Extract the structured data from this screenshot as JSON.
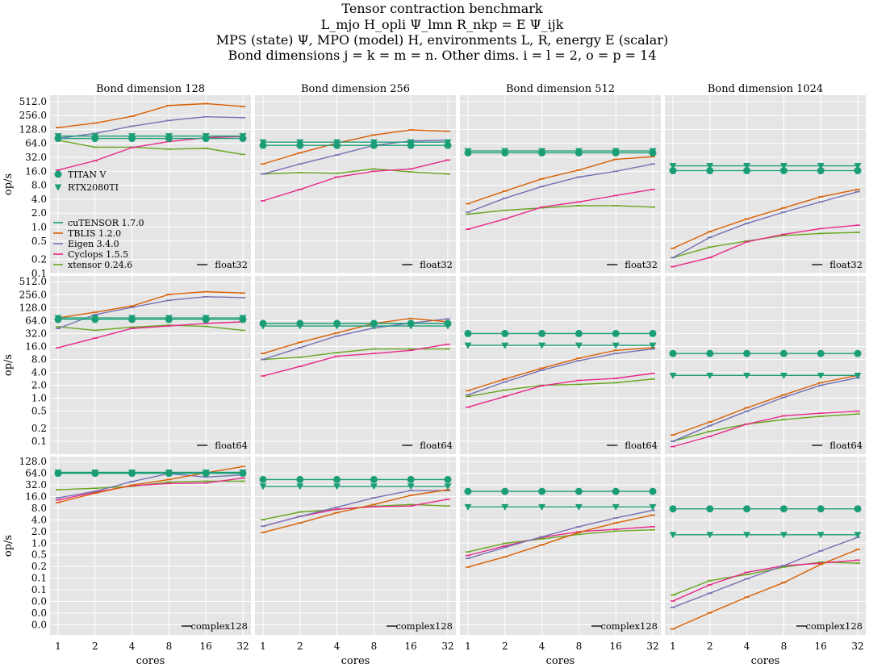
{
  "title_lines": [
    "Tensor contraction benchmark",
    "L_mjo H_opli Ψ_lmn R_nkp = E Ψ_ijk",
    "MPS (state) Ψ, MPO (model) H, environments L, R, energy E (scalar)",
    "Bond dimensions j = k = m = n. Other dims. i = l = 2, o = p = 14"
  ],
  "column_titles": [
    "Bond dimension 128",
    "Bond dimension 256",
    "Bond dimension 512",
    "Bond dimension 1024"
  ],
  "row_dtypes": [
    "float32",
    "float64",
    "complex128"
  ],
  "xlabel": "cores",
  "ylabel": "op/s",
  "x_tick_labels": [
    "1",
    "2",
    "4",
    "8",
    "16",
    "32"
  ],
  "y_tick_labels_top": [
    "0.1",
    "0.2",
    "0.5",
    "1.0",
    "2.0",
    "4.0",
    "8.0",
    "16.0",
    "32.0",
    "64.0",
    "128.0",
    "256.0",
    "512.0"
  ],
  "y_tick_labels_bottom": [
    "0.0",
    "0.0",
    "0.0",
    "0.1",
    "0.1",
    "0.2",
    "0.5",
    "1.0",
    "2.0",
    "4.0",
    "8.0",
    "16.0",
    "32.0",
    "64.0",
    "128.0"
  ],
  "legend": {
    "gpu": [
      {
        "label": "TITAN V",
        "marker": "circle"
      },
      {
        "label": "RTX2080TI",
        "marker": "triangle-down"
      }
    ],
    "cpu": [
      "cuTENSOR 1.7.0",
      "TBLIS 1.2.0",
      "Eigen 3.4.0",
      "Cyclops 1.5.5",
      "xtensor 0.24.6"
    ]
  },
  "colors": {
    "cutensor": "#1b9e77",
    "tblis": "#d95f02",
    "eigen": "#7570b3",
    "cyclops": "#e7298a",
    "xtensor": "#66a61e",
    "panel_bg": "#e5e5e5",
    "grid": "#ffffff"
  },
  "chart_data": {
    "type": "line",
    "x": [
      1,
      2,
      4,
      8,
      16,
      32
    ],
    "xscale": "log2",
    "yscale": "log",
    "grid": true,
    "legend_placement": "left, top-left panel",
    "ylim_rows": [
      [
        0.1,
        700
      ],
      [
        0.05,
        700
      ],
      [
        0.001,
        180
      ]
    ],
    "panels": [
      {
        "row": 0,
        "col": 0,
        "series": {
          "titan": [
            82,
            82,
            82,
            82,
            82,
            82
          ],
          "rtx": [
            92,
            92,
            92,
            92,
            92,
            92
          ],
          "tblis": [
            140,
            175,
            245,
            420,
            460,
            400
          ],
          "eigen": [
            82,
            105,
            150,
            200,
            240,
            230
          ],
          "cyclops": [
            17,
            27,
            52,
            70,
            85,
            90
          ],
          "xtensor": [
            75,
            53,
            53,
            48,
            50,
            37
          ]
        }
      },
      {
        "row": 0,
        "col": 1,
        "series": {
          "titan": [
            58,
            58,
            58,
            58,
            58,
            58
          ],
          "rtx": [
            68,
            68,
            68,
            68,
            68,
            68
          ],
          "tblis": [
            23,
            40,
            65,
            97,
            125,
            117
          ],
          "eigen": [
            14,
            23,
            36,
            58,
            72,
            75
          ],
          "cyclops": [
            3.7,
            6.5,
            12,
            16,
            18,
            28
          ],
          "xtensor": [
            14,
            15,
            14.5,
            18,
            15.5,
            14
          ]
        }
      },
      {
        "row": 0,
        "col": 2,
        "series": {
          "titan": [
            40,
            40,
            40,
            40,
            40,
            40
          ],
          "rtx": [
            44,
            44,
            44,
            44,
            44,
            44
          ],
          "tblis": [
            3.2,
            6,
            11,
            17,
            29,
            33
          ],
          "eigen": [
            2.1,
            4.2,
            7.5,
            12,
            16,
            23
          ],
          "cyclops": [
            0.9,
            1.5,
            2.7,
            3.5,
            4.8,
            6.5
          ],
          "xtensor": [
            1.9,
            2.3,
            2.6,
            2.9,
            2.9,
            2.7
          ]
        }
      },
      {
        "row": 0,
        "col": 3,
        "series": {
          "titan": [
            16.5,
            16.5,
            16.5,
            16.5,
            16.5,
            16.5
          ],
          "rtx": [
            21,
            21,
            21,
            21,
            21,
            21
          ],
          "tblis": [
            0.35,
            0.8,
            1.5,
            2.6,
            4.5,
            6.5
          ],
          "eigen": [
            0.22,
            0.6,
            1.2,
            2.1,
            3.5,
            5.8
          ],
          "cyclops": [
            0.14,
            0.22,
            0.48,
            0.7,
            0.93,
            1.1
          ],
          "xtensor": [
            0.22,
            0.37,
            0.5,
            0.66,
            0.73,
            0.77
          ]
        }
      },
      {
        "row": 1,
        "col": 0,
        "series": {
          "titan": [
            68,
            68,
            68,
            68,
            68,
            68
          ],
          "rtx": [
            74,
            74,
            74,
            74,
            74,
            74
          ],
          "tblis": [
            74,
            100,
            140,
            260,
            300,
            280
          ],
          "eigen": [
            42,
            88,
            130,
            190,
            230,
            220
          ],
          "cyclops": [
            15,
            25,
            42,
            48,
            55,
            60
          ],
          "xtensor": [
            46,
            38,
            45,
            50,
            47,
            38
          ]
        }
      },
      {
        "row": 1,
        "col": 1,
        "series": {
          "titan": [
            55,
            55,
            55,
            55,
            55,
            55
          ],
          "rtx": [
            48,
            48,
            48,
            48,
            48,
            48
          ],
          "tblis": [
            11,
            20,
            33,
            55,
            72,
            60
          ],
          "eigen": [
            8,
            15,
            28,
            43,
            56,
            70
          ],
          "cyclops": [
            3.3,
            5.5,
            9.5,
            11,
            13,
            18
          ],
          "xtensor": [
            8,
            9,
            11.5,
            14,
            14,
            14
          ]
        }
      },
      {
        "row": 1,
        "col": 2,
        "series": {
          "titan": [
            32,
            32,
            32,
            32,
            32,
            32
          ],
          "rtx": [
            17,
            17,
            17,
            17,
            17,
            17
          ],
          "tblis": [
            1.5,
            2.8,
            5,
            8.5,
            13,
            15
          ],
          "eigen": [
            1.2,
            2.4,
            4.5,
            7.5,
            11,
            14
          ],
          "cyclops": [
            0.62,
            1.1,
            1.95,
            2.6,
            2.9,
            3.8
          ],
          "xtensor": [
            1.1,
            1.55,
            2,
            2.1,
            2.3,
            2.8
          ]
        }
      },
      {
        "row": 1,
        "col": 3,
        "series": {
          "titan": [
            11,
            11,
            11,
            11,
            11,
            11
          ],
          "rtx": [
            3.4,
            3.4,
            3.4,
            3.4,
            3.4,
            3.4
          ],
          "tblis": [
            0.14,
            0.28,
            0.6,
            1.2,
            2.3,
            3.4
          ],
          "eigen": [
            0.1,
            0.23,
            0.5,
            1.05,
            2,
            3
          ],
          "cyclops": [
            0.075,
            0.13,
            0.25,
            0.39,
            0.45,
            0.5
          ],
          "xtensor": [
            0.1,
            0.17,
            0.25,
            0.32,
            0.38,
            0.43
          ]
        }
      },
      {
        "row": 2,
        "col": 0,
        "series": {
          "titan": [
            58,
            58,
            58,
            58,
            58,
            58
          ],
          "rtx": [
            62,
            62,
            62,
            62,
            62,
            62
          ],
          "tblis": [
            8,
            15,
            26,
            38,
            60,
            92
          ],
          "eigen": [
            11,
            17,
            33,
            57,
            45,
            52
          ],
          "cyclops": [
            9.5,
            16,
            25,
            29,
            30,
            42
          ],
          "xtensor": [
            19,
            21,
            24,
            32,
            34,
            34
          ]
        }
      },
      {
        "row": 2,
        "col": 1,
        "series": {
          "titan": [
            38,
            38,
            38,
            38,
            38,
            38
          ],
          "rtx": [
            24,
            24,
            24,
            24,
            24,
            24
          ],
          "tblis": [
            1.05,
            2,
            4,
            7,
            13,
            19
          ],
          "eigen": [
            1.6,
            3.1,
            5.8,
            11,
            18,
            18
          ],
          "cyclops": [
            1.6,
            3.1,
            5.1,
            6,
            6.3,
            10
          ],
          "xtensor": [
            2.5,
            4.2,
            5,
            6.2,
            7,
            6.3
          ]
        }
      },
      {
        "row": 2,
        "col": 2,
        "series": {
          "titan": [
            17,
            17,
            17,
            17,
            17,
            17
          ],
          "rtx": [
            5.9,
            5.9,
            5.9,
            5.9,
            5.9,
            5.9
          ],
          "tblis": [
            0.1,
            0.2,
            0.45,
            1.05,
            2,
            3.4
          ],
          "eigen": [
            0.18,
            0.38,
            0.78,
            1.55,
            2.8,
            4.7
          ],
          "cyclops": [
            0.22,
            0.42,
            0.75,
            1.1,
            1.3,
            1.55
          ],
          "xtensor": [
            0.28,
            0.5,
            0.68,
            0.92,
            1.15,
            1.25
          ]
        }
      },
      {
        "row": 2,
        "col": 3,
        "series": {
          "titan": [
            5.2,
            5.2,
            5.2,
            5.2,
            5.2,
            5.2
          ],
          "rtx": [
            0.9,
            0.9,
            0.9,
            0.9,
            0.9,
            0.9
          ],
          "tblis": [
            0.0015,
            0.0045,
            0.013,
            0.035,
            0.12,
            0.33
          ],
          "eigen": [
            0.0065,
            0.017,
            0.045,
            0.11,
            0.3,
            0.75
          ],
          "cyclops": [
            0.01,
            0.03,
            0.07,
            0.11,
            0.13,
            0.16
          ],
          "xtensor": [
            0.015,
            0.04,
            0.06,
            0.1,
            0.14,
            0.13
          ]
        }
      }
    ]
  }
}
